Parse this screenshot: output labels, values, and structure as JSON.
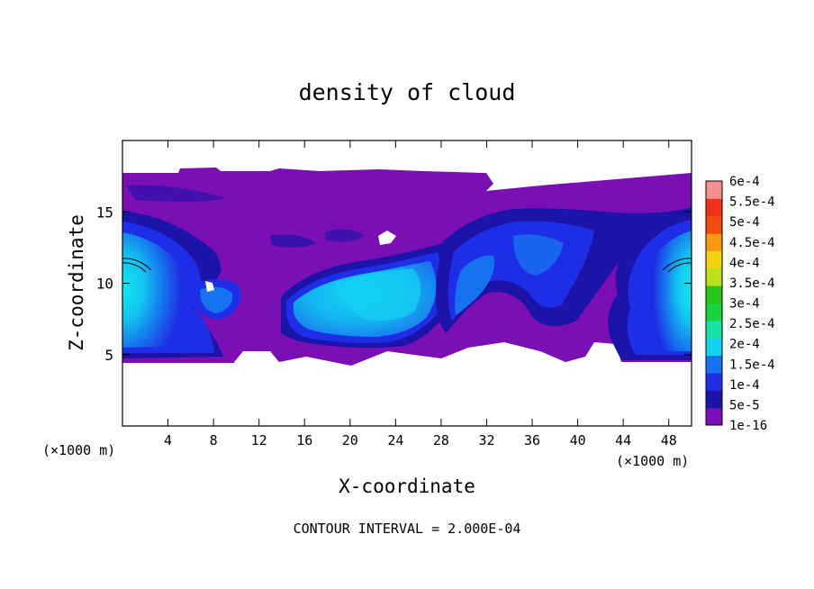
{
  "chart_data": {
    "type": "heatmap",
    "title": "density of cloud",
    "xlabel": "X-coordinate",
    "ylabel": "Z-coordinate",
    "x_unit": "(×1000 m)",
    "xlim": [
      0,
      50
    ],
    "ylim": [
      0,
      20
    ],
    "x_ticks": [
      4,
      8,
      12,
      16,
      20,
      24,
      28,
      32,
      36,
      40,
      44,
      48
    ],
    "y_ticks": [
      5,
      10,
      15
    ],
    "footer": "CONTOUR INTERVAL = 2.000E-04",
    "grid": false,
    "colorbar": {
      "levels": [
        "1e-16",
        "5e-5",
        "1e-4",
        "1.5e-4",
        "2e-4",
        "2.5e-4",
        "3e-4",
        "3.5e-4",
        "4e-4",
        "4.5e-4",
        "5e-4",
        "5.5e-4",
        "6e-4"
      ],
      "colors": [
        "#7a0fb3",
        "#1c13a8",
        "#1e2ee6",
        "#1772f0",
        "#12d2f0",
        "#16e3a6",
        "#19d33c",
        "#27c41b",
        "#b9e01a",
        "#f2d211",
        "#f59a10",
        "#f04a0f",
        "#f0301c",
        "#f59090"
      ]
    },
    "field_extent": {
      "x": [
        0,
        50
      ],
      "z": [
        4.5,
        17.8
      ]
    },
    "features": [
      {
        "name": "left-core",
        "x": 0.8,
        "z": 10.8,
        "peak": "2e-4"
      },
      {
        "name": "central-cell",
        "x": 22,
        "z": 9.5,
        "peak": "2e-4"
      },
      {
        "name": "right-core",
        "x": 49.2,
        "z": 10.8,
        "peak": "2e-4"
      }
    ]
  }
}
